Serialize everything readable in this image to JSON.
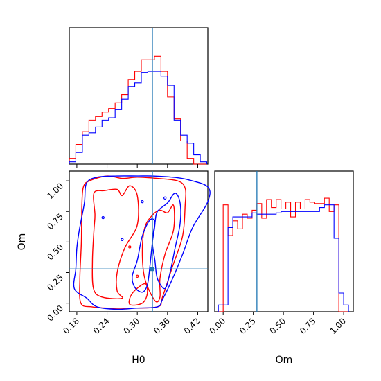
{
  "chart_data": {
    "type": "corner",
    "parameters": [
      "H0",
      "Om"
    ],
    "truth": {
      "H0": 0.33,
      "Om": 0.28
    },
    "truth_color": "#1f77b4",
    "series": [
      {
        "color": "#ff0000"
      },
      {
        "color": "#0000ff"
      }
    ],
    "axes": {
      "H0": {
        "label": "H0",
        "range": [
          0.165,
          0.44
        ],
        "ticks": [
          "0.18",
          "0.24",
          "0.30",
          "0.36",
          "0.42"
        ],
        "tick_values": [
          0.18,
          0.24,
          0.3,
          0.36,
          0.42
        ]
      },
      "Om": {
        "label": "Om",
        "range": [
          -0.07,
          1.08
        ],
        "ticks": [
          "0.00",
          "0.25",
          "0.50",
          "0.75",
          "1.00"
        ],
        "tick_values": [
          0.0,
          0.25,
          0.5,
          0.75,
          1.0
        ]
      }
    },
    "hist_H0": {
      "bin_edges": [
        0.165,
        0.178,
        0.191,
        0.204,
        0.217,
        0.23,
        0.243,
        0.256,
        0.269,
        0.282,
        0.295,
        0.308,
        0.321,
        0.334,
        0.347,
        0.36,
        0.373,
        0.386,
        0.399,
        0.412,
        0.425,
        0.438
      ],
      "density_red": [
        0.05,
        0.17,
        0.28,
        0.38,
        0.41,
        0.45,
        0.48,
        0.53,
        0.6,
        0.73,
        0.8,
        0.9,
        0.9,
        0.93,
        0.8,
        0.58,
        0.39,
        0.2,
        0.05,
        0.0,
        0.0
      ],
      "density_blue": [
        0.02,
        0.1,
        0.25,
        0.27,
        0.32,
        0.38,
        0.4,
        0.47,
        0.56,
        0.67,
        0.7,
        0.79,
        0.8,
        0.8,
        0.76,
        0.68,
        0.38,
        0.25,
        0.18,
        0.08,
        0.02
      ]
    },
    "hist_Om": {
      "bin_edges": [
        -0.04,
        0.0,
        0.04,
        0.08,
        0.12,
        0.16,
        0.2,
        0.24,
        0.28,
        0.32,
        0.36,
        0.4,
        0.44,
        0.48,
        0.52,
        0.56,
        0.6,
        0.64,
        0.68,
        0.72,
        0.76,
        0.8,
        0.84,
        0.88,
        0.92,
        0.96,
        1.0,
        1.04
      ],
      "density_red": [
        0.0,
        0.8,
        0.57,
        0.68,
        0.62,
        0.73,
        0.7,
        0.76,
        0.81,
        0.7,
        0.84,
        0.78,
        0.84,
        0.77,
        0.82,
        0.71,
        0.82,
        0.77,
        0.84,
        0.82,
        0.81,
        0.81,
        0.85,
        0.75,
        0.8,
        0.0,
        0.0
      ],
      "density_blue": [
        0.05,
        0.05,
        0.63,
        0.71,
        0.71,
        0.71,
        0.71,
        0.74,
        0.73,
        0.73,
        0.73,
        0.73,
        0.74,
        0.75,
        0.75,
        0.75,
        0.75,
        0.75,
        0.75,
        0.75,
        0.75,
        0.78,
        0.8,
        0.8,
        0.55,
        0.14,
        0.05
      ]
    },
    "contours": [
      {
        "series": 0,
        "level": "outer",
        "points": [
          [
            0.188,
            0.0
          ],
          [
            0.186,
            0.2
          ],
          [
            0.189,
            0.5
          ],
          [
            0.19,
            0.8
          ],
          [
            0.193,
            0.95
          ],
          [
            0.205,
            1.0
          ],
          [
            0.24,
            1.04
          ],
          [
            0.27,
            1.02
          ],
          [
            0.3,
            1.03
          ],
          [
            0.34,
            1.02
          ],
          [
            0.38,
            1.0
          ],
          [
            0.395,
            0.94
          ],
          [
            0.395,
            0.8
          ],
          [
            0.39,
            0.55
          ],
          [
            0.37,
            0.3
          ],
          [
            0.35,
            0.05
          ],
          [
            0.34,
            -0.03
          ],
          [
            0.28,
            -0.04
          ],
          [
            0.24,
            -0.04
          ],
          [
            0.21,
            -0.03
          ]
        ]
      },
      {
        "series": 0,
        "level": "inner",
        "points": [
          [
            0.213,
            0.12
          ],
          [
            0.211,
            0.35
          ],
          [
            0.214,
            0.6
          ],
          [
            0.216,
            0.72
          ],
          [
            0.214,
            0.9
          ],
          [
            0.235,
            0.92
          ],
          [
            0.26,
            0.93
          ],
          [
            0.27,
            0.88
          ],
          [
            0.285,
            0.96
          ],
          [
            0.3,
            0.88
          ],
          [
            0.3,
            0.64
          ],
          [
            0.275,
            0.45
          ],
          [
            0.26,
            0.25
          ],
          [
            0.26,
            0.1
          ],
          [
            0.27,
            0.04
          ],
          [
            0.23,
            0.05
          ]
        ]
      },
      {
        "series": 0,
        "level": "core",
        "points": [
          [
            0.335,
            0.02
          ],
          [
            0.315,
            0.2
          ],
          [
            0.31,
            0.42
          ],
          [
            0.315,
            0.62
          ],
          [
            0.33,
            0.72
          ],
          [
            0.345,
            0.76
          ],
          [
            0.36,
            0.74
          ],
          [
            0.372,
            0.8
          ],
          [
            0.372,
            0.6
          ],
          [
            0.355,
            0.4
          ],
          [
            0.345,
            0.2
          ],
          [
            0.345,
            0.05
          ]
        ]
      },
      {
        "series": 0,
        "level": "core2",
        "points": [
          [
            0.285,
            -0.01
          ],
          [
            0.29,
            0.08
          ],
          [
            0.315,
            0.16
          ],
          [
            0.32,
            0.08
          ],
          [
            0.31,
            0.0
          ]
        ]
      },
      {
        "series": 1,
        "level": "outer",
        "points": [
          [
            0.175,
            0.12
          ],
          [
            0.178,
            0.28
          ],
          [
            0.18,
            0.45
          ],
          [
            0.185,
            0.6
          ],
          [
            0.195,
            0.82
          ],
          [
            0.199,
            0.98
          ],
          [
            0.22,
            1.03
          ],
          [
            0.26,
            1.04
          ],
          [
            0.3,
            1.04
          ],
          [
            0.33,
            1.04
          ],
          [
            0.37,
            1.03
          ],
          [
            0.4,
            1.01
          ],
          [
            0.44,
            0.95
          ],
          [
            0.44,
            0.83
          ],
          [
            0.41,
            0.62
          ],
          [
            0.39,
            0.4
          ],
          [
            0.37,
            0.2
          ],
          [
            0.35,
            0.03
          ],
          [
            0.34,
            -0.03
          ],
          [
            0.3,
            -0.04
          ],
          [
            0.26,
            -0.05
          ],
          [
            0.22,
            -0.03
          ],
          [
            0.2,
            0.04
          ]
        ]
      },
      {
        "series": 1,
        "level": "inner",
        "points": [
          [
            0.34,
            0.2
          ],
          [
            0.335,
            0.35
          ],
          [
            0.33,
            0.5
          ],
          [
            0.335,
            0.65
          ],
          [
            0.34,
            0.75
          ],
          [
            0.36,
            0.82
          ],
          [
            0.375,
            0.9
          ],
          [
            0.385,
            0.82
          ],
          [
            0.385,
            0.65
          ],
          [
            0.375,
            0.45
          ],
          [
            0.365,
            0.25
          ],
          [
            0.355,
            0.12
          ]
        ]
      },
      {
        "series": 1,
        "level": "core",
        "points": [
          [
            0.295,
            0.13
          ],
          [
            0.29,
            0.22
          ],
          [
            0.3,
            0.35
          ],
          [
            0.31,
            0.55
          ],
          [
            0.325,
            0.68
          ],
          [
            0.335,
            0.66
          ],
          [
            0.33,
            0.5
          ],
          [
            0.325,
            0.3
          ],
          [
            0.32,
            0.15
          ],
          [
            0.31,
            0.09
          ]
        ]
      }
    ]
  }
}
